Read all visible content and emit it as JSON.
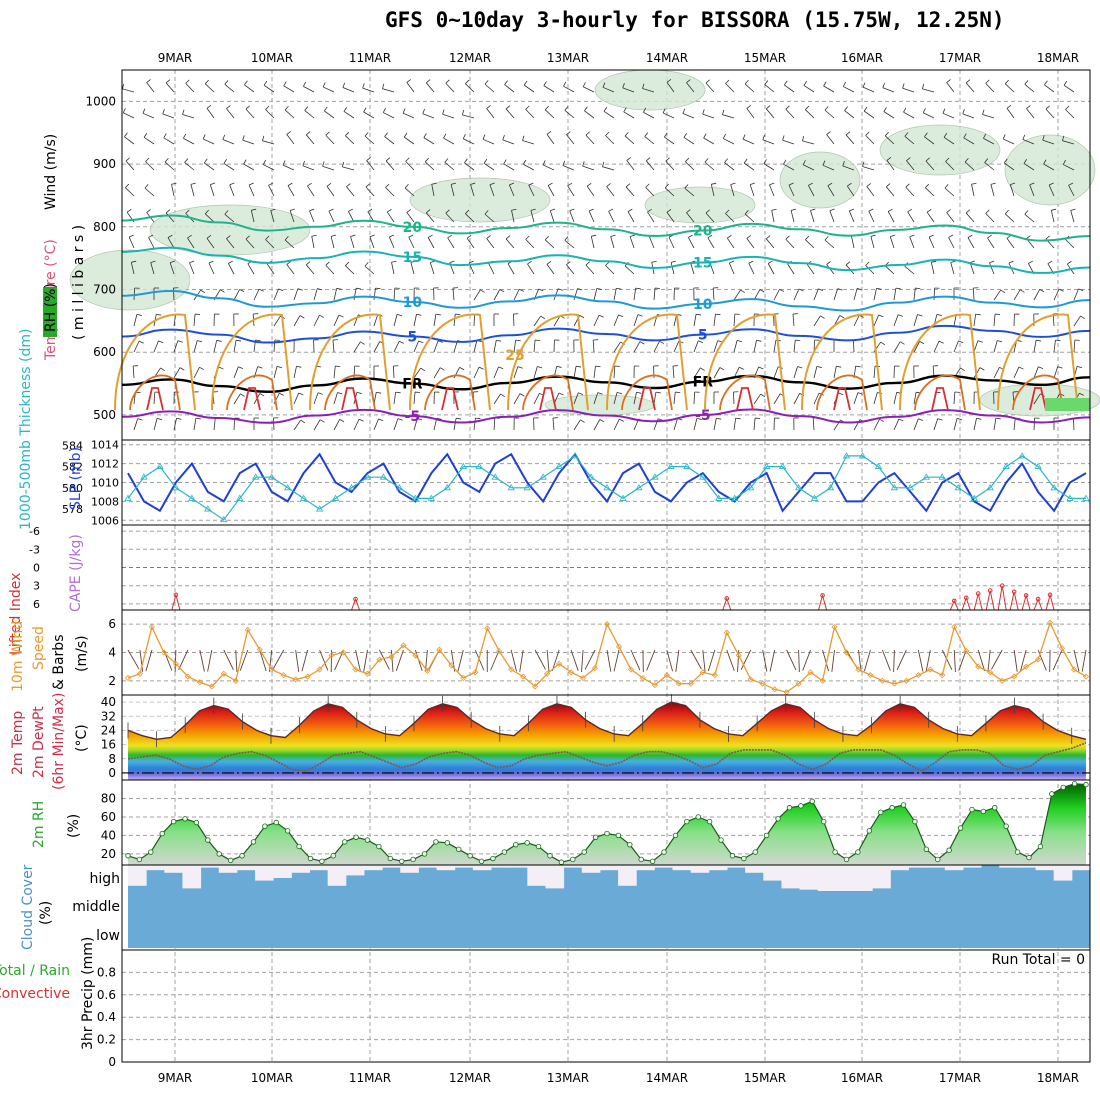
{
  "title": "GFS 0~10day 3-hourly for BISSORA (15.75W, 12.25N)",
  "dates": [
    "9MAR",
    "10MAR",
    "11MAR",
    "12MAR",
    "13MAR",
    "14MAR",
    "15MAR",
    "16MAR",
    "17MAR",
    "18MAR"
  ],
  "colors": {
    "grid": "#a0a0a0",
    "purple": "#8a20b8",
    "blue": "#1f4fd6",
    "lightblue": "#1e9ad6",
    "teal": "#19b3b3",
    "green_contour": "#1fb38c",
    "orange": "#e0a030",
    "red": "#d83030",
    "slp": "#1f3fd6",
    "thick": "#2ab5c8",
    "wind10": "#e89a30",
    "rh": "#2a8a2a",
    "cloud": "#6aaad6",
    "precip_text": "#000000"
  },
  "chart_data": [
    {
      "type": "contour",
      "panel": "upper-air",
      "ylabels": {
        "wind": "Wind (m/s)",
        "temp": "Temperature (°C)",
        "rh": "RH (%)",
        "unit": "( m i l l i b a r s )"
      },
      "yticks": [
        500,
        600,
        700,
        800,
        900,
        1000
      ],
      "ylim": [
        460,
        1050
      ],
      "contour_labels": [
        "-5",
        "FR",
        "5",
        "10",
        "15",
        "20",
        "25"
      ],
      "isotherms": [
        {
          "label": "-5",
          "color": "purple",
          "values": [
            497,
            495,
            499,
            498,
            497,
            499,
            500,
            498,
            497,
            499,
            496
          ]
        },
        {
          "label": "FR",
          "color": "black",
          "values": [
            548,
            546,
            547,
            550,
            551,
            552,
            553,
            552,
            551,
            555,
            560
          ]
        },
        {
          "label": "5",
          "color": "blue",
          "values": [
            625,
            628,
            622,
            625,
            627,
            629,
            628,
            626,
            631,
            634,
            634
          ]
        },
        {
          "label": "10",
          "color": "lightblue",
          "values": [
            690,
            686,
            678,
            680,
            681,
            681,
            677,
            673,
            679,
            679,
            683
          ]
        },
        {
          "label": "15",
          "color": "teal",
          "values": [
            760,
            754,
            750,
            752,
            745,
            745,
            743,
            742,
            739,
            737,
            735
          ]
        },
        {
          "label": "20",
          "color": "green_contour",
          "values": [
            810,
            807,
            800,
            800,
            798,
            796,
            794,
            796,
            795,
            790,
            785
          ]
        }
      ]
    },
    {
      "type": "line",
      "panel": "thickness-slp",
      "ylabels": {
        "thickness": "1000-500mb Thickness (dm)",
        "slp": "SLP (mb)"
      },
      "left_ticks": [
        584,
        582,
        580,
        578
      ],
      "right_ticks": [
        1014,
        1012,
        1010,
        1008,
        1006
      ],
      "series": [
        {
          "name": "SLP (mb)",
          "color": "slp",
          "values": [
            1011,
            1008,
            1007,
            1010,
            1012,
            1009,
            1008,
            1011,
            1012,
            1009,
            1008,
            1011,
            1013,
            1010,
            1009,
            1011,
            1012,
            1009,
            1008,
            1011,
            1013,
            1010,
            1009,
            1012,
            1013,
            1010,
            1008,
            1011,
            1013,
            1010,
            1008,
            1011,
            1012,
            1009,
            1008,
            1010,
            1011,
            1009,
            1008,
            1010,
            1011,
            1007,
            1009,
            1011,
            1011,
            1008,
            1008,
            1010,
            1011,
            1009,
            1007,
            1010,
            1011,
            1008,
            1007,
            1010,
            1012,
            1009,
            1007,
            1010,
            1011
          ]
        },
        {
          "name": "Thickness (dm)",
          "color": "thick",
          "values": [
            579,
            581,
            582,
            580,
            579,
            578,
            577,
            579,
            581,
            581,
            580,
            579,
            578,
            579,
            580,
            581,
            581,
            580,
            579,
            579,
            580,
            582,
            582,
            581,
            580,
            580,
            581,
            582,
            583,
            581,
            580,
            579,
            580,
            581,
            582,
            582,
            581,
            579,
            579,
            580,
            582,
            582,
            580,
            579,
            580,
            583,
            583,
            582,
            580,
            580,
            581,
            581,
            580,
            579,
            580,
            582,
            583,
            582,
            580,
            579,
            579
          ]
        }
      ]
    },
    {
      "type": "line",
      "panel": "cape-li",
      "ylabels": {
        "li": "Lifted Index",
        "cape": "CAPE (J/kg)"
      },
      "left_ticks": [
        "-6",
        "-3",
        "0",
        "3",
        "6"
      ],
      "li_spikes": [
        {
          "i": 4,
          "v": 4.5
        },
        {
          "i": 19,
          "v": 5.2
        },
        {
          "i": 50,
          "v": 5.1
        },
        {
          "i": 58,
          "v": 4.6
        },
        {
          "i": 69,
          "v": 5.5
        },
        {
          "i": 70,
          "v": 5.0
        },
        {
          "i": 71,
          "v": 4.3
        },
        {
          "i": 72,
          "v": 3.8
        },
        {
          "i": 73,
          "v": 3.0
        },
        {
          "i": 74,
          "v": 4.0
        },
        {
          "i": 75,
          "v": 4.6
        },
        {
          "i": 76,
          "v": 5.2
        },
        {
          "i": 77,
          "v": 4.5
        }
      ]
    },
    {
      "type": "line",
      "panel": "wind10m",
      "ylabels": {
        "wind": "10m Wind",
        "speed": "Speed",
        "barbs": "& Barbs",
        "unit": "(m/s)"
      },
      "yticks": [
        2,
        4,
        6
      ],
      "ylim": [
        1,
        7
      ],
      "series": [
        {
          "name": "10m Wind Speed",
          "color": "wind10",
          "values": [
            2.2,
            2.5,
            5.8,
            4.0,
            3.2,
            2.3,
            1.9,
            1.6,
            2.5,
            2.0,
            5.6,
            4.2,
            2.8,
            2.4,
            2.1,
            2.3,
            2.8,
            3.8,
            4.0,
            2.8,
            2.5,
            3.5,
            3.7,
            4.5,
            3.8,
            2.7,
            4.2,
            3.1,
            2.2,
            2.6,
            5.7,
            4.1,
            2.8,
            2.3,
            1.6,
            2.5,
            3.2,
            2.6,
            2.2,
            2.9,
            6.0,
            4.4,
            2.8,
            2.2,
            1.7,
            2.4,
            1.8,
            1.8,
            2.6,
            2.4,
            5.4,
            3.8,
            2.1,
            1.8,
            1.4,
            1.2,
            1.8,
            2.6,
            2.0,
            5.8,
            4.0,
            2.8,
            2.4,
            2.0,
            1.8,
            2.0,
            2.4,
            2.8,
            2.4,
            5.8,
            4.1,
            3.0,
            2.6,
            2.0,
            2.3,
            3.0,
            3.5,
            6.1,
            4.3,
            2.8,
            2.3
          ]
        }
      ]
    },
    {
      "type": "area",
      "panel": "temperature",
      "ylabels": {
        "temp": "2m Temp",
        "dew": "2m DewPt",
        "minmax": "(6hr Min/Max)",
        "unit": "(°C)"
      },
      "yticks": [
        0,
        8,
        16,
        24,
        32,
        40
      ],
      "ylim": [
        -4,
        44
      ],
      "series": [
        {
          "name": "2m Temp",
          "values": [
            24,
            21,
            19,
            20,
            27,
            35,
            38,
            36,
            29,
            24,
            21,
            20,
            27,
            35,
            39,
            37,
            30,
            25,
            22,
            21,
            28,
            36,
            39,
            37,
            30,
            25,
            22,
            21,
            28,
            36,
            39,
            37,
            30,
            25,
            22,
            21,
            28,
            36,
            40,
            38,
            30,
            25,
            22,
            21,
            28,
            35,
            39,
            37,
            30,
            25,
            22,
            21,
            27,
            35,
            39,
            37,
            30,
            25,
            22,
            21,
            28,
            35,
            38,
            36,
            29,
            24,
            21,
            19
          ]
        },
        {
          "name": "2m DewPt",
          "values": [
            8,
            9,
            10,
            8,
            4,
            2,
            4,
            9,
            11,
            12,
            10,
            6,
            2,
            1,
            5,
            10,
            11,
            12,
            9,
            6,
            3,
            5,
            9,
            11,
            12,
            10,
            6,
            3,
            4,
            8,
            10,
            11,
            12,
            9,
            6,
            4,
            6,
            10,
            12,
            12,
            10,
            7,
            3,
            5,
            11,
            13,
            13,
            13,
            10,
            5,
            2,
            5,
            11,
            13,
            13,
            13,
            10,
            5,
            1,
            6,
            12,
            13,
            13,
            11,
            4,
            2,
            4,
            10,
            12,
            14,
            17
          ]
        }
      ]
    },
    {
      "type": "area",
      "panel": "rh2m",
      "ylabels": {
        "rh": "2m RH",
        "unit": "(%)"
      },
      "yticks": [
        20,
        40,
        60,
        80
      ],
      "ylim": [
        8,
        100
      ],
      "series": [
        {
          "name": "2m RH",
          "values": [
            18,
            14,
            22,
            42,
            55,
            58,
            54,
            35,
            20,
            13,
            18,
            33,
            50,
            54,
            45,
            28,
            15,
            12,
            18,
            33,
            38,
            35,
            28,
            15,
            12,
            14,
            20,
            33,
            32,
            25,
            18,
            12,
            15,
            22,
            30,
            32,
            28,
            18,
            11,
            14,
            22,
            38,
            42,
            40,
            30,
            14,
            12,
            22,
            40,
            55,
            60,
            55,
            35,
            18,
            15,
            22,
            40,
            58,
            70,
            72,
            77,
            55,
            22,
            14,
            22,
            45,
            65,
            70,
            73,
            55,
            25,
            14,
            24,
            48,
            68,
            66,
            70,
            50,
            22,
            16,
            28,
            85,
            92,
            96,
            95
          ]
        }
      ]
    },
    {
      "type": "bar",
      "panel": "cloud",
      "ylabels": {
        "cover": "Cloud Cover",
        "unit": "(%)"
      },
      "levels": [
        "high",
        "middle",
        "low"
      ],
      "high_gaps": [
        0.8,
        0.2,
        0.3,
        0.9,
        0.1,
        0.3,
        0.2,
        0.6,
        0.5,
        0.3,
        0.2,
        0.8,
        0.4,
        0.2,
        0.1,
        0.3,
        0.1,
        0.2,
        0.1,
        0.2,
        0.1,
        0.1,
        0.8,
        0.9,
        0.1,
        0.3,
        0.2,
        0.8,
        0.2,
        0.1,
        0.2,
        0.3,
        0.2,
        0.1,
        0.3,
        0.6,
        0.9,
        0.95,
        1.0,
        1.0,
        1.0,
        0.9,
        0.2,
        0.1,
        0.1,
        0.2,
        0.1,
        0.0,
        0.1,
        0.1,
        0.2,
        0.6,
        0.2
      ]
    },
    {
      "type": "bar",
      "panel": "precip",
      "ylabels": {
        "total": "Total / Rain",
        "conv": "Convective",
        "precip": "3hr Precip (mm)"
      },
      "yticks": [
        "0",
        "0.2",
        "0.4",
        "0.6",
        "0.8"
      ],
      "ylim": [
        0,
        1
      ],
      "run_total": "Run Total = 0",
      "values": []
    }
  ]
}
